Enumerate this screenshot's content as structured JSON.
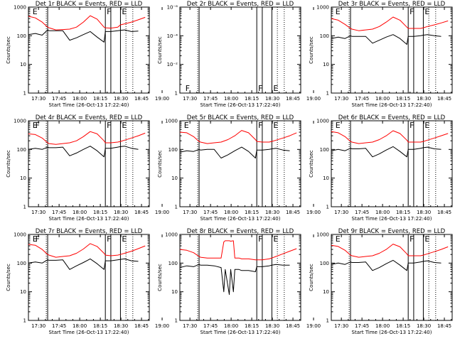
{
  "figure": {
    "start_time_label": "Start Time (26-Oct-13 17:22:40)",
    "y_label": "Counts/sec",
    "x_ticks": [
      "17:30",
      "17:45",
      "18:00",
      "18:15",
      "18:30",
      "18:45",
      "19:00"
    ],
    "y_ticks_log": [
      "1",
      "10",
      "100",
      "1000"
    ],
    "colors": {
      "events": "#000000",
      "lld": "#ff0000",
      "axes": "#000000"
    },
    "flag_labels": {
      "eclipse": "E",
      "flare": "F"
    }
  },
  "chart_data": [
    {
      "type": "line",
      "title": "Det  1r BLACK = Events, RED = LLD",
      "xlabel": "Start Time (26-Oct-13 17:22:40)",
      "ylabel": "Counts/sec",
      "ylim": [
        1,
        1000
      ],
      "yscale": "log",
      "x_minutes": [
        0,
        5,
        10,
        14,
        15,
        20,
        25,
        30,
        35,
        40,
        45,
        50,
        55,
        56,
        60,
        65,
        67,
        70,
        75,
        80,
        85
      ],
      "series": [
        {
          "name": "LLD",
          "color": "#ff0000",
          "values": [
            480,
            420,
            300,
            200,
            190,
            160,
            165,
            170,
            200,
            300,
            500,
            380,
            200,
            190,
            185,
            200,
            240,
            260,
            300,
            360,
            440
          ]
        },
        {
          "name": "Events",
          "color": "#000000",
          "values": [
            110,
            120,
            105,
            160,
            150,
            150,
            150,
            70,
            85,
            110,
            140,
            90,
            60,
            140,
            140,
            150,
            155,
            160,
            140,
            145,
            null
          ]
        }
      ],
      "vlines_solid": [
        14,
        56,
        60,
        67
      ],
      "vlines_dotted": [
        13,
        71,
        76
      ],
      "flags": [
        {
          "t": 3,
          "label": "E"
        },
        {
          "t": 57,
          "label": "F"
        },
        {
          "t": 68,
          "label": "E"
        }
      ]
    },
    {
      "type": "line",
      "title": "Det  2r BLACK = Events, RED = LLD",
      "xlabel": "Start Time (26-Oct-13 17:22:40)",
      "ylabel": "Counts/sec",
      "yscale": "log",
      "y_ticks": [
        "1",
        "10⁻²",
        "10⁻⁴",
        "10⁻⁶"
      ],
      "series": [],
      "vlines_solid": [
        14,
        56,
        60,
        67
      ],
      "vlines_dotted": [
        13,
        71,
        76
      ],
      "flags": [
        {
          "t": 4,
          "label": "F"
        },
        {
          "t": 57,
          "label": "F"
        },
        {
          "t": 68,
          "label": "E"
        }
      ]
    },
    {
      "type": "line",
      "title": "Det  3r BLACK = Events, RED = LLD",
      "xlabel": "Start Time (26-Oct-13 17:22:40)",
      "ylabel": "Counts/sec",
      "ylim": [
        1,
        1000
      ],
      "yscale": "log",
      "x_minutes": [
        0,
        5,
        10,
        14,
        15,
        20,
        25,
        30,
        35,
        40,
        45,
        50,
        55,
        56,
        60,
        65,
        67,
        70,
        75,
        80,
        85
      ],
      "series": [
        {
          "name": "LLD",
          "color": "#ff0000",
          "values": [
            400,
            350,
            250,
            180,
            170,
            150,
            160,
            170,
            210,
            300,
            450,
            350,
            200,
            180,
            180,
            180,
            190,
            210,
            240,
            280,
            330
          ]
        },
        {
          "name": "Events",
          "color": "#000000",
          "values": [
            80,
            90,
            80,
            100,
            95,
            95,
            95,
            55,
            70,
            90,
            110,
            80,
            50,
            95,
            95,
            100,
            105,
            110,
            100,
            95,
            null
          ]
        }
      ],
      "vlines_solid": [
        14,
        56,
        60,
        67
      ],
      "vlines_dotted": [
        13,
        71,
        76
      ],
      "flags": [
        {
          "t": 3,
          "label": "E"
        },
        {
          "t": 57,
          "label": "F"
        },
        {
          "t": 68,
          "label": "E"
        }
      ]
    },
    {
      "type": "line",
      "title": "Det  4r BLACK = Events, RED = LLD",
      "xlabel": "Start Time (26-Oct-13 17:22:40)",
      "ylabel": "Counts/sec",
      "ylim": [
        1,
        1000
      ],
      "yscale": "log",
      "x_minutes": [
        0,
        5,
        10,
        14,
        15,
        20,
        25,
        30,
        35,
        40,
        45,
        50,
        55,
        56,
        60,
        65,
        67,
        70,
        75,
        80,
        85
      ],
      "series": [
        {
          "name": "LLD",
          "color": "#ff0000",
          "values": [
            350,
            330,
            250,
            170,
            160,
            150,
            160,
            170,
            200,
            280,
            420,
            350,
            200,
            170,
            170,
            180,
            190,
            210,
            250,
            300,
            370
          ]
        },
        {
          "name": "Events",
          "color": "#000000",
          "values": [
            100,
            110,
            100,
            120,
            115,
            115,
            120,
            60,
            75,
            100,
            130,
            90,
            55,
            110,
            110,
            120,
            125,
            130,
            110,
            100,
            null
          ]
        }
      ],
      "vlines_solid": [
        14,
        56,
        60,
        67
      ],
      "vlines_dotted": [
        13,
        71,
        76
      ],
      "flags": [
        {
          "t": 3,
          "label": "E"
        },
        {
          "t": 5,
          "label": "F"
        },
        {
          "t": 57,
          "label": "F"
        },
        {
          "t": 68,
          "label": "E"
        }
      ]
    },
    {
      "type": "line",
      "title": "Det  5r BLACK = Events, RED = LLD",
      "xlabel": "Start Time (26-Oct-13 17:22:40)",
      "ylabel": "Counts/sec",
      "ylim": [
        1,
        1000
      ],
      "yscale": "log",
      "x_minutes": [
        0,
        5,
        10,
        14,
        15,
        20,
        25,
        30,
        35,
        40,
        45,
        50,
        55,
        56,
        60,
        65,
        67,
        70,
        75,
        80,
        85
      ],
      "series": [
        {
          "name": "LLD",
          "color": "#ff0000",
          "values": [
            400,
            380,
            280,
            190,
            180,
            160,
            170,
            180,
            220,
            300,
            460,
            380,
            220,
            190,
            180,
            180,
            190,
            210,
            250,
            300,
            380
          ]
        },
        {
          "name": "Events",
          "color": "#000000",
          "values": [
            80,
            90,
            85,
            100,
            95,
            100,
            100,
            50,
            65,
            90,
            120,
            85,
            50,
            95,
            95,
            100,
            105,
            110,
            95,
            90,
            null
          ]
        }
      ],
      "vlines_solid": [
        14,
        56,
        60,
        67
      ],
      "vlines_dotted": [
        13,
        71,
        76
      ],
      "flags": [
        {
          "t": 3,
          "label": "E"
        },
        {
          "t": 57,
          "label": "F"
        },
        {
          "t": 68,
          "label": "E"
        }
      ]
    },
    {
      "type": "line",
      "title": "Det  6r BLACK = Events, RED = LLD",
      "xlabel": "Start Time (26-Oct-13 17:22:40)",
      "ylabel": "Counts/sec",
      "ylim": [
        1,
        1000
      ],
      "yscale": "log",
      "x_minutes": [
        0,
        5,
        10,
        14,
        15,
        20,
        25,
        30,
        35,
        40,
        45,
        50,
        55,
        56,
        60,
        65,
        67,
        70,
        75,
        80,
        85
      ],
      "series": [
        {
          "name": "LLD",
          "color": "#ff0000",
          "values": [
            420,
            380,
            280,
            190,
            180,
            160,
            170,
            180,
            220,
            300,
            450,
            360,
            210,
            180,
            180,
            180,
            190,
            210,
            250,
            300,
            360
          ]
        },
        {
          "name": "Events",
          "color": "#000000",
          "values": [
            90,
            100,
            90,
            110,
            105,
            105,
            110,
            55,
            70,
            95,
            125,
            85,
            55,
            100,
            100,
            110,
            115,
            120,
            105,
            100,
            null
          ]
        }
      ],
      "vlines_solid": [
        14,
        56,
        60,
        67
      ],
      "vlines_dotted": [
        13,
        71,
        76
      ],
      "flags": [
        {
          "t": 3,
          "label": "E"
        },
        {
          "t": 57,
          "label": "F"
        },
        {
          "t": 68,
          "label": "E"
        }
      ]
    },
    {
      "type": "line",
      "title": "Det  7r BLACK = Events, RED = LLD",
      "xlabel": "Start Time (26-Oct-13 17:22:40)",
      "ylabel": "Counts/sec",
      "ylim": [
        1,
        1000
      ],
      "yscale": "log",
      "x_minutes": [
        0,
        5,
        10,
        14,
        15,
        20,
        25,
        30,
        35,
        40,
        45,
        50,
        55,
        56,
        60,
        65,
        67,
        70,
        75,
        80,
        85
      ],
      "series": [
        {
          "name": "LLD",
          "color": "#ff0000",
          "values": [
            450,
            420,
            300,
            200,
            190,
            160,
            170,
            180,
            220,
            310,
            480,
            380,
            220,
            190,
            180,
            190,
            200,
            220,
            260,
            320,
            400
          ]
        },
        {
          "name": "Events",
          "color": "#000000",
          "values": [
            100,
            110,
            100,
            130,
            125,
            125,
            130,
            60,
            80,
            105,
            140,
            95,
            60,
            120,
            120,
            130,
            135,
            140,
            120,
            115,
            null
          ]
        }
      ],
      "vlines_solid": [
        14,
        56,
        60,
        67
      ],
      "vlines_dotted": [
        13,
        71,
        76
      ],
      "flags": [
        {
          "t": 3,
          "label": "E"
        },
        {
          "t": 5,
          "label": "F"
        },
        {
          "t": 57,
          "label": "F"
        },
        {
          "t": 68,
          "label": "E"
        }
      ]
    },
    {
      "type": "line",
      "title": "Det  8r BLACK = Events, RED = LLD",
      "xlabel": "Start Time (26-Oct-13 17:22:40)",
      "ylabel": "Counts/sec",
      "ylim": [
        1,
        1000
      ],
      "yscale": "log",
      "x_minutes": [
        0,
        5,
        10,
        14,
        15,
        20,
        25,
        30,
        32,
        33,
        36,
        37,
        39,
        40,
        43,
        45,
        50,
        55,
        56,
        60,
        65,
        67,
        70,
        75,
        80,
        85
      ],
      "series": [
        {
          "name": "LLD",
          "color": "#ff0000",
          "values": [
            300,
            280,
            230,
            170,
            160,
            150,
            150,
            150,
            550,
            600,
            600,
            580,
            600,
            150,
            150,
            140,
            140,
            130,
            130,
            130,
            140,
            150,
            170,
            210,
            260,
            320
          ]
        },
        {
          "name": "Events",
          "color": "#000000",
          "values": [
            70,
            80,
            75,
            90,
            85,
            85,
            80,
            70,
            10,
            60,
            8,
            60,
            10,
            60,
            60,
            55,
            55,
            50,
            75,
            75,
            80,
            85,
            90,
            85,
            85,
            null
          ]
        }
      ],
      "vlines_solid": [
        14,
        56,
        60,
        67
      ],
      "vlines_dotted": [
        13,
        71,
        76
      ],
      "flags": [
        {
          "t": 57,
          "label": "F"
        },
        {
          "t": 68,
          "label": "E"
        }
      ]
    },
    {
      "type": "line",
      "title": "Det  9r BLACK = Events, RED = LLD",
      "xlabel": "Start Time (26-Oct-13 17:22:40)",
      "ylabel": "Counts/sec",
      "ylim": [
        1,
        1000
      ],
      "yscale": "log",
      "x_minutes": [
        0,
        5,
        10,
        14,
        15,
        20,
        25,
        30,
        35,
        40,
        45,
        50,
        55,
        56,
        60,
        65,
        67,
        70,
        75,
        80,
        85
      ],
      "series": [
        {
          "name": "LLD",
          "color": "#ff0000",
          "values": [
            420,
            380,
            280,
            190,
            180,
            160,
            170,
            180,
            220,
            300,
            460,
            370,
            210,
            180,
            180,
            180,
            190,
            210,
            250,
            300,
            370
          ]
        },
        {
          "name": "Events",
          "color": "#000000",
          "values": [
            90,
            100,
            90,
            110,
            105,
            105,
            110,
            55,
            70,
            95,
            125,
            85,
            55,
            100,
            100,
            110,
            115,
            120,
            105,
            100,
            null
          ]
        }
      ],
      "vlines_solid": [
        14,
        56,
        60,
        67
      ],
      "vlines_dotted": [
        13,
        71,
        76
      ],
      "flags": [
        {
          "t": 3,
          "label": "E"
        },
        {
          "t": 57,
          "label": "F"
        },
        {
          "t": 68,
          "label": "E"
        }
      ]
    }
  ]
}
